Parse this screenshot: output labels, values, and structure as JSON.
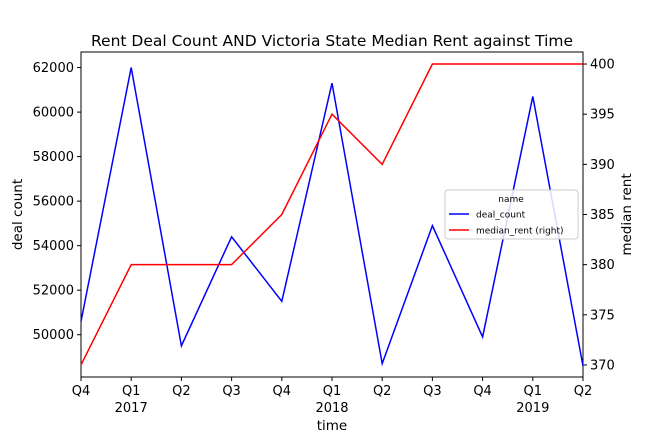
{
  "chart_data": {
    "type": "line",
    "title": "Rent Deal Count AND Victoria State Median Rent against Time",
    "xlabel": "time",
    "ylabel": "deal count",
    "ylabel_right": "median rent",
    "x": [
      "Q4",
      "Q1",
      "Q2",
      "Q3",
      "Q4",
      "Q1",
      "Q2",
      "Q3",
      "Q4",
      "Q1",
      "Q2"
    ],
    "year_labels": [
      {
        "index": 1,
        "label": "2017"
      },
      {
        "index": 5,
        "label": "2018"
      },
      {
        "index": 9,
        "label": "2019"
      }
    ],
    "series": [
      {
        "name": "deal_count",
        "axis": "left",
        "color": "#0000ff",
        "values": [
          50600,
          62000,
          49500,
          54400,
          51500,
          61300,
          48700,
          54900,
          49900,
          60700,
          48600
        ]
      },
      {
        "name": "median_rent (right)",
        "axis": "right",
        "color": "#ff0000",
        "values": [
          370,
          380,
          380,
          380,
          385,
          395,
          390,
          400,
          400,
          400,
          400
        ]
      }
    ],
    "ylim": [
      48100,
      62700
    ],
    "ylim_right": [
      368.8,
      401.2
    ],
    "yticks": [
      50000,
      52000,
      54000,
      56000,
      58000,
      60000,
      62000
    ],
    "yticks_right": [
      370,
      375,
      380,
      385,
      390,
      395,
      400
    ],
    "legend": {
      "title": "name",
      "placement": "center-right"
    },
    "grid": false
  }
}
